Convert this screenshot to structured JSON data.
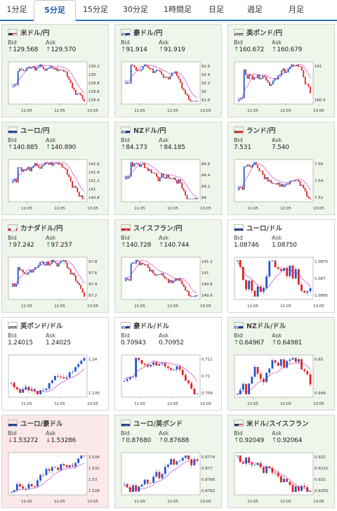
{
  "tabs": [
    {
      "label": "1分足",
      "active": false
    },
    {
      "label": "5分足",
      "active": true
    },
    {
      "label": "15分足",
      "active": false
    },
    {
      "label": "30分足",
      "active": false
    },
    {
      "label": "1時間足",
      "active": false
    },
    {
      "label": "日足",
      "active": false
    },
    {
      "label": "週足",
      "active": false
    },
    {
      "label": "月足",
      "active": false
    }
  ],
  "bid_label": "Bid",
  "ask_label": "Ask",
  "cards": [
    {
      "pair": "米ドル/円",
      "flag": "us",
      "bid": "129.568",
      "ask": "129.570",
      "dir": "up",
      "bg": "green",
      "yticks": [
        "130.2",
        "130",
        "129.8",
        "129.6",
        "129.4"
      ],
      "xticks": [
        "11:05",
        "12:05",
        "13:05"
      ],
      "trend": "down",
      "style": "line"
    },
    {
      "pair": "豪ドル/円",
      "flag": "au",
      "bid": "91.914",
      "ask": "91.919",
      "dir": "up",
      "bg": "green",
      "yticks": [
        "92.6",
        "92.4",
        "92.2",
        "92",
        "91.8"
      ],
      "xticks": [
        "11:05",
        "12:05",
        "13:05"
      ],
      "trend": "down",
      "style": "line"
    },
    {
      "pair": "英ポンド/円",
      "flag": "uk",
      "bid": "160.672",
      "ask": "160.679",
      "dir": "up",
      "bg": "green",
      "yticks": [
        "161",
        "160.5"
      ],
      "xticks": [
        "11:05",
        "12:05",
        "13:05"
      ],
      "trend": "down",
      "style": "line"
    },
    {
      "pair": "ユーロ/円",
      "flag": "eu",
      "bid": "140.885",
      "ask": "140.890",
      "dir": "up",
      "bg": "green",
      "yticks": [
        "141.6",
        "141.4",
        "141.2",
        "141",
        "140.8"
      ],
      "xticks": [
        "11:05",
        "12:05",
        "13:05"
      ],
      "trend": "down",
      "style": "line"
    },
    {
      "pair": "NZドル/円",
      "flag": "nz",
      "bid": "84.173",
      "ask": "84.185",
      "dir": "up",
      "bg": "green",
      "yticks": [
        "84.6",
        "84.4",
        "84.2",
        "84"
      ],
      "xticks": [
        "11:05",
        "12:05",
        "13:05"
      ],
      "trend": "down",
      "style": "line"
    },
    {
      "pair": "ランド/円",
      "flag": "za",
      "bid": "7.531",
      "ask": "7.540",
      "dir": "none",
      "bg": "green",
      "yticks": [
        "7.56",
        "7.54",
        "7.52"
      ],
      "xticks": [
        "11:05",
        "12:05",
        "13:05"
      ],
      "trend": "down",
      "style": "line"
    },
    {
      "pair": "カナダドル/円",
      "flag": "ca",
      "bid": "97.242",
      "ask": "97.257",
      "dir": "up",
      "bg": "green",
      "yticks": [
        "97.8",
        "97.6",
        "97.4",
        "97.2"
      ],
      "xticks": [
        "11:05",
        "12:05",
        "13:05"
      ],
      "trend": "down",
      "style": "line"
    },
    {
      "pair": "スイスフラン/円",
      "flag": "ch",
      "bid": "140.728",
      "ask": "140.744",
      "dir": "up",
      "bg": "green",
      "yticks": [
        "141.2",
        "141",
        "140.8",
        "140.6"
      ],
      "xticks": [
        "11:05",
        "12:05",
        "13:05"
      ],
      "trend": "down",
      "style": "line"
    },
    {
      "pair": "ユーロ/ドル",
      "flag": "eu",
      "bid": "1.08746",
      "ask": "1.08750",
      "dir": "none",
      "bg": "white",
      "yticks": [
        "1.0875",
        "1.087",
        "1.0865"
      ],
      "xticks": [
        "11:05",
        "12:05",
        "13:05"
      ],
      "trend": "flat",
      "style": "candle"
    },
    {
      "pair": "英ポンド/ドル",
      "flag": "uk",
      "bid": "1.24015",
      "ask": "1.24025",
      "dir": "none",
      "bg": "white",
      "yticks": [
        "1.24",
        "1.239"
      ],
      "xticks": [
        "11:05",
        "12:05",
        "13:05"
      ],
      "trend": "flat",
      "style": "candle"
    },
    {
      "pair": "豪ドル/ドル",
      "flag": "au",
      "bid": "0.70943",
      "ask": "0.70952",
      "dir": "none",
      "bg": "white",
      "yticks": [
        "0.711",
        "0.71",
        "0.709"
      ],
      "xticks": [
        "11:05",
        "12:05",
        "13:05"
      ],
      "trend": "down",
      "style": "candle"
    },
    {
      "pair": "NZドル/ドル",
      "flag": "nz",
      "bid": "0.64967",
      "ask": "0.64981",
      "dir": "up",
      "bg": "green",
      "yticks": [
        "0.65",
        "0.649"
      ],
      "xticks": [
        "11:05",
        "12:05",
        "13:05"
      ],
      "trend": "flat",
      "style": "candle"
    },
    {
      "pair": "ユーロ/豪ドル",
      "flag": "eu",
      "bid": "1.53272",
      "ask": "1.53286",
      "dir": "down",
      "bg": "red",
      "yticks": [
        "1.534",
        "1.532",
        "1.53",
        "1.528"
      ],
      "xticks": [
        "11:05",
        "12:05",
        "13:05"
      ],
      "trend": "up",
      "style": "candle"
    },
    {
      "pair": "ユーロ/英ポンド",
      "flag": "eu",
      "bid": "0.87680",
      "ask": "0.87688",
      "dir": "up",
      "bg": "green",
      "yticks": [
        "0.8774",
        "0.877",
        "0.8766",
        "0.8762"
      ],
      "xticks": [
        "11:05",
        "12:05",
        "13:05"
      ],
      "trend": "flat",
      "style": "candle"
    },
    {
      "pair": "米ドル/スイスフラン",
      "flag": "us",
      "bid": "0.92049",
      "ask": "0.92064",
      "dir": "up",
      "bg": "green",
      "yticks": [
        "0.922",
        "0.9215",
        "0.921",
        "0.9205"
      ],
      "xticks": [
        "11:05",
        "12:05",
        "13:05"
      ],
      "trend": "flat",
      "style": "candle"
    }
  ],
  "colors": {
    "accent": "#2a73c9",
    "up": "#2a8a2a",
    "down": "#c43030",
    "candle_up": "#2255cc",
    "candle_down": "#dd2222",
    "ma": "#cc44cc"
  }
}
